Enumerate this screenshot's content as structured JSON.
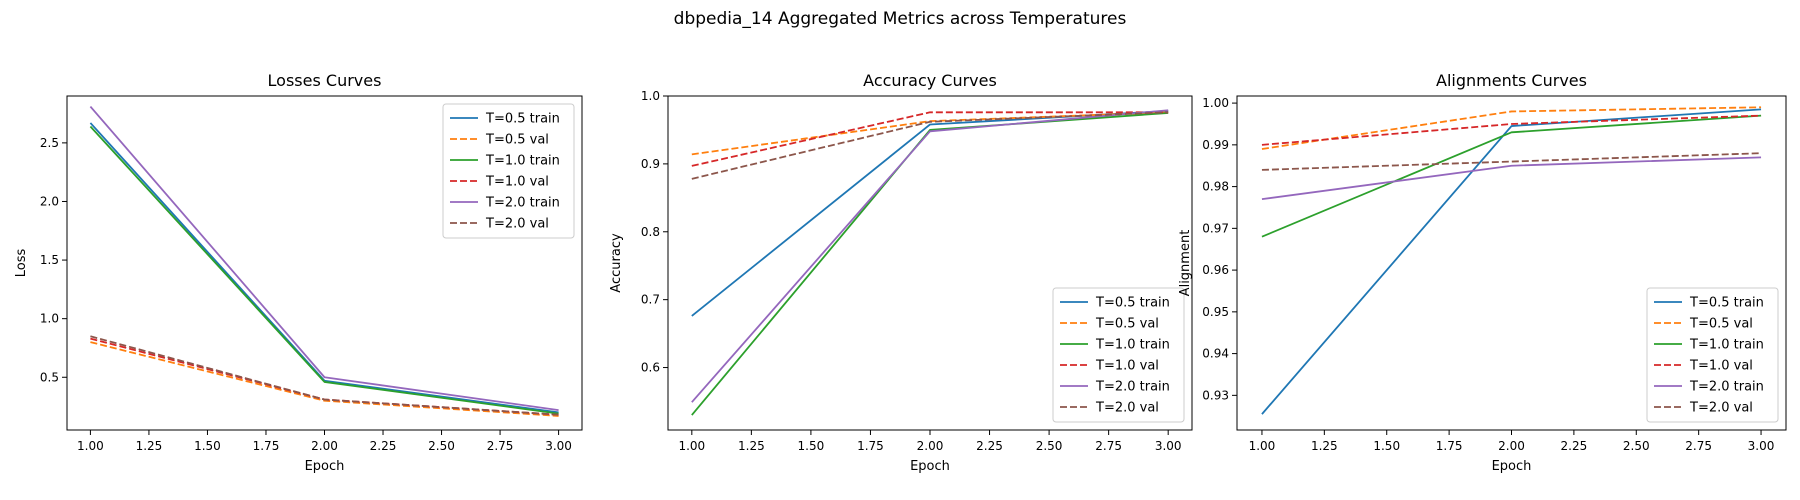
{
  "figure": {
    "title": "dbpedia_14 Aggregated Metrics across Temperatures"
  },
  "chart_data": [
    {
      "type": "line",
      "title": "Losses Curves",
      "xlabel": "Epoch",
      "ylabel": "Loss",
      "xlim": [
        0.9,
        3.1
      ],
      "ylim": [
        0.05,
        2.9
      ],
      "xticks": [
        1.0,
        1.25,
        1.5,
        1.75,
        2.0,
        2.25,
        2.5,
        2.75,
        3.0
      ],
      "yticks": [
        0.5,
        1.0,
        1.5,
        2.0,
        2.5
      ],
      "ytick_decimals": 1,
      "grid": false,
      "legend": "upper-right",
      "x": [
        1,
        2,
        3
      ],
      "series": [
        {
          "name": "T=0.5 train",
          "color": "#1f77b4",
          "dash": "solid",
          "values": [
            2.67,
            0.47,
            0.2
          ]
        },
        {
          "name": "T=0.5 val",
          "color": "#ff7f0e",
          "dash": "dashed",
          "values": [
            0.8,
            0.3,
            0.17
          ]
        },
        {
          "name": "T=1.0 train",
          "color": "#2ca02c",
          "dash": "solid",
          "values": [
            2.64,
            0.46,
            0.19
          ]
        },
        {
          "name": "T=1.0 val",
          "color": "#d62728",
          "dash": "dashed",
          "values": [
            0.83,
            0.31,
            0.18
          ]
        },
        {
          "name": "T=2.0 train",
          "color": "#9467bd",
          "dash": "solid",
          "values": [
            2.81,
            0.5,
            0.22
          ]
        },
        {
          "name": "T=2.0 val",
          "color": "#8c564b",
          "dash": "dashed",
          "values": [
            0.85,
            0.31,
            0.18
          ]
        }
      ]
    },
    {
      "type": "line",
      "title": "Accuracy Curves",
      "xlabel": "Epoch",
      "ylabel": "Accuracy",
      "xlim": [
        0.9,
        3.1
      ],
      "ylim": [
        0.508,
        1.0
      ],
      "xticks": [
        1.0,
        1.25,
        1.5,
        1.75,
        2.0,
        2.25,
        2.5,
        2.75,
        3.0
      ],
      "yticks": [
        0.6,
        0.7,
        0.8,
        0.9,
        1.0
      ],
      "ytick_decimals": 1,
      "grid": false,
      "legend": "lower-right",
      "x": [
        1,
        2,
        3
      ],
      "series": [
        {
          "name": "T=0.5 train",
          "color": "#1f77b4",
          "dash": "solid",
          "values": [
            0.676,
            0.958,
            0.978
          ]
        },
        {
          "name": "T=0.5 val",
          "color": "#ff7f0e",
          "dash": "dashed",
          "values": [
            0.914,
            0.963,
            0.976
          ]
        },
        {
          "name": "T=1.0 train",
          "color": "#2ca02c",
          "dash": "solid",
          "values": [
            0.53,
            0.95,
            0.975
          ]
        },
        {
          "name": "T=1.0 val",
          "color": "#d62728",
          "dash": "dashed",
          "values": [
            0.897,
            0.976,
            0.976
          ]
        },
        {
          "name": "T=2.0 train",
          "color": "#9467bd",
          "dash": "solid",
          "values": [
            0.549,
            0.948,
            0.979
          ]
        },
        {
          "name": "T=2.0 val",
          "color": "#8c564b",
          "dash": "dashed",
          "values": [
            0.878,
            0.962,
            0.976
          ]
        }
      ]
    },
    {
      "type": "line",
      "title": "Alignments Curves",
      "xlabel": "Epoch",
      "ylabel": "Alignment",
      "xlim": [
        0.9,
        3.1
      ],
      "ylim": [
        0.9217,
        1.0017
      ],
      "xticks": [
        1.0,
        1.25,
        1.5,
        1.75,
        2.0,
        2.25,
        2.5,
        2.75,
        3.0
      ],
      "yticks": [
        0.93,
        0.94,
        0.95,
        0.96,
        0.97,
        0.98,
        0.99,
        1.0
      ],
      "ytick_decimals": 2,
      "grid": false,
      "legend": "lower-right",
      "x": [
        1,
        2,
        3
      ],
      "series": [
        {
          "name": "T=0.5 train",
          "color": "#1f77b4",
          "dash": "solid",
          "values": [
            0.9255,
            0.9945,
            0.9985
          ]
        },
        {
          "name": "T=0.5 val",
          "color": "#ff7f0e",
          "dash": "dashed",
          "values": [
            0.989,
            0.998,
            0.999
          ]
        },
        {
          "name": "T=1.0 train",
          "color": "#2ca02c",
          "dash": "solid",
          "values": [
            0.968,
            0.993,
            0.997
          ]
        },
        {
          "name": "T=1.0 val",
          "color": "#d62728",
          "dash": "dashed",
          "values": [
            0.99,
            0.995,
            0.997
          ]
        },
        {
          "name": "T=2.0 train",
          "color": "#9467bd",
          "dash": "solid",
          "values": [
            0.977,
            0.985,
            0.987
          ]
        },
        {
          "name": "T=2.0 val",
          "color": "#8c564b",
          "dash": "dashed",
          "values": [
            0.984,
            0.986,
            0.988
          ]
        }
      ]
    }
  ]
}
